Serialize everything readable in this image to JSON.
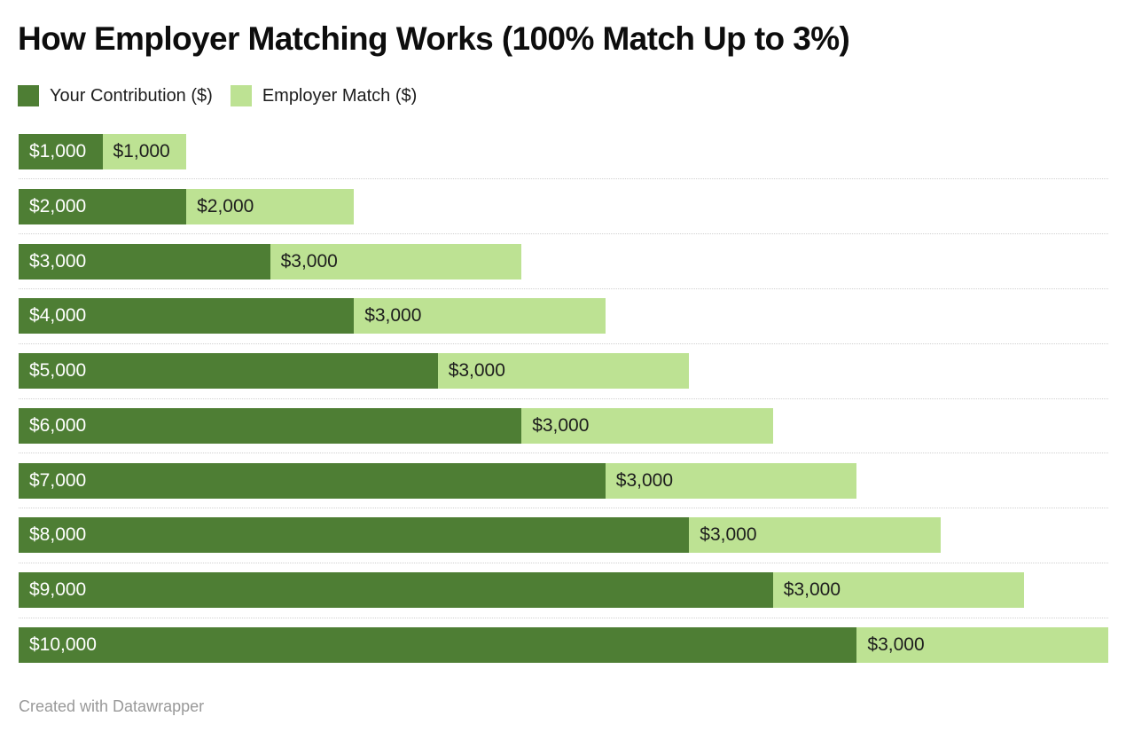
{
  "title": "How Employer Matching Works (100% Match Up to 3%)",
  "legend": {
    "items": [
      {
        "label": "Your Contribution ($)",
        "color": "#4e7e34"
      },
      {
        "label": "Employer Match ($)",
        "color": "#bde293"
      }
    ]
  },
  "footer": {
    "attribution": "Created with Datawrapper"
  },
  "colors": {
    "contribution_fill": "#4e7e34",
    "match_fill": "#bde293",
    "separator": "#d0d0d0",
    "title_text": "#0d0d0d",
    "label_on_dark": "#ffffff",
    "label_on_light": "#1d1d1d",
    "footer_text": "#999999",
    "background": "#ffffff"
  },
  "chart_data": {
    "type": "bar",
    "orientation": "horizontal",
    "stacked": true,
    "title": "How Employer Matching Works (100% Match Up to 3%)",
    "xlabel": "",
    "ylabel": "",
    "xlim": [
      0,
      13000
    ],
    "grid": false,
    "legend_position": "top",
    "row_separators": "dotted",
    "series": [
      {
        "name": "Your Contribution ($)",
        "values": [
          1000,
          2000,
          3000,
          4000,
          5000,
          6000,
          7000,
          8000,
          9000,
          10000
        ],
        "labels": [
          "$1,000",
          "$2,000",
          "$3,000",
          "$4,000",
          "$5,000",
          "$6,000",
          "$7,000",
          "$8,000",
          "$9,000",
          "$10,000"
        ]
      },
      {
        "name": "Employer Match ($)",
        "values": [
          1000,
          2000,
          3000,
          3000,
          3000,
          3000,
          3000,
          3000,
          3000,
          3000
        ],
        "labels": [
          "$1,000",
          "$2,000",
          "$3,000",
          "$3,000",
          "$3,000",
          "$3,000",
          "$3,000",
          "$3,000",
          "$3,000",
          "$3,000"
        ]
      }
    ]
  }
}
